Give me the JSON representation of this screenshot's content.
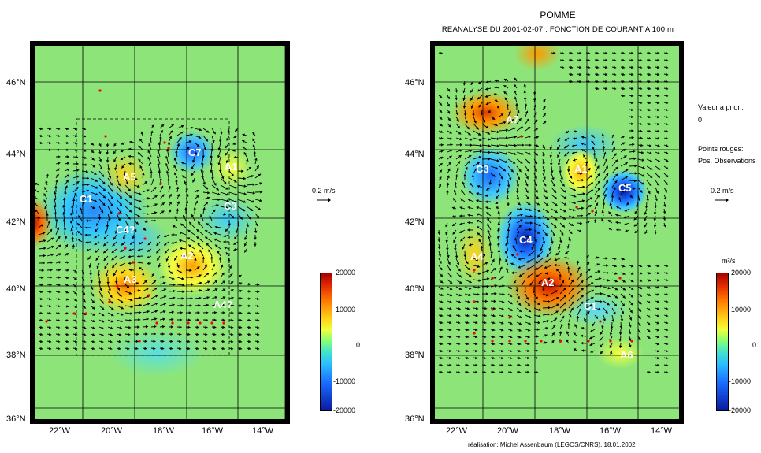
{
  "header": {
    "title": "POMME",
    "subtitle": "REANALYSE DU 2001-02-07 : FONCTION DE COURANT A 100 m"
  },
  "maps": {
    "lat_labels": [
      "46°N",
      "44°N",
      "42°N",
      "40°N",
      "38°N",
      "36°N"
    ],
    "lon_labels": [
      "22°W",
      "20°W",
      "18°W",
      "16°W",
      "14°W"
    ]
  },
  "left_map": {
    "labels": [
      "C7",
      "A5",
      "C1",
      "A1",
      "C3",
      "C4?",
      "A2",
      "A3",
      "A4?"
    ],
    "scale": "0.2 m/s",
    "colorbar": [
      "20000",
      "10000",
      "0",
      "-10000",
      "-20000"
    ]
  },
  "right_map": {
    "labels": [
      "A7",
      "C3",
      "A1",
      "C5",
      "C4",
      "A4",
      "A2",
      "C1",
      "A6"
    ],
    "scale": "0.2 m/s",
    "units": "m²/s",
    "colorbar": [
      "20000",
      "10000",
      "0",
      "-10000",
      "-20000"
    ]
  },
  "info": {
    "prior_label": "Valeur a priori:",
    "prior_value": "0",
    "red_label": "Points rouges:",
    "red_value": "Pos. Observations"
  },
  "credit": "réalisation: Michel Assenbaum (LEGOS/CNRS), 18.01.2002",
  "colors": {
    "frame": "#000000",
    "obs": "#ff0000",
    "arrows": "#000000"
  }
}
